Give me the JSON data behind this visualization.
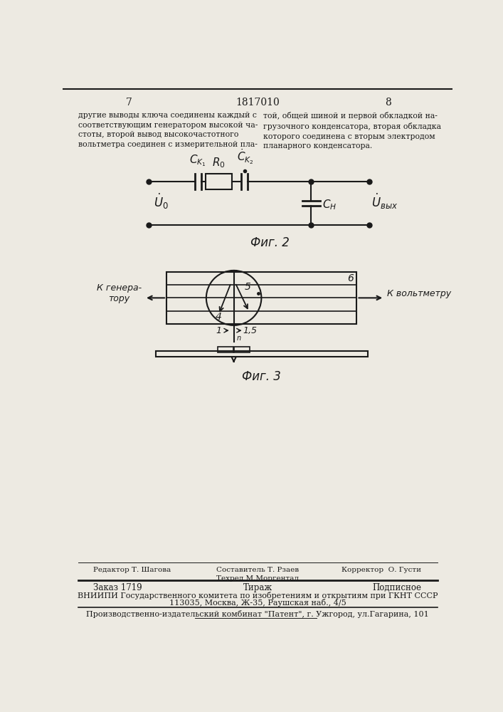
{
  "page_numbers": [
    "7",
    "1817010",
    "8"
  ],
  "text_left": "другие выводы ключа соединены каждый с\nсоответствующим генератором высокой ча-\nстоты, второй вывод высокочастотного\nвольтметра соединен с измерительной пла-",
  "text_right": "той, общей шиной и первой обкладкой на-\nгрузочного конденсатора, вторая обкладка\nкоторого соединена с вторым электродом\nпланарного конденсатора.",
  "fig2_caption": "Фиг. 2",
  "fig3_caption": "Фиг. 3",
  "label_k_generat": "К генера-\nтору",
  "label_k_voltmetr": "К вольтметру",
  "label_4": "4",
  "label_5": "5",
  "label_6": "6",
  "label_1": "1",
  "label_15": "1,5",
  "footer_line1_left": "Редактор Т. Шагова",
  "footer_line1_mid": "Составитель Т. Рзаев\nТехред М.Моргентал",
  "footer_line1_right": "Корректор  О. Густи",
  "footer_line2_left": "Заказ 1719",
  "footer_line2_mid": "Тираж",
  "footer_line2_right": "Подписное",
  "footer_line3": "ВНИИПИ Государственного комитета по изобретениям и открытиям при ГКНТ СССР",
  "footer_line4": "113035, Москва, Ж-35, Раушская наб., 4/5",
  "footer_line5": "Производственно-издательский комбинат \"Патент\", г. Ужгород, ул.Гагарина, 101",
  "bg_color": "#edeae2",
  "line_color": "#1a1a1a",
  "text_color": "#1a1a1a"
}
